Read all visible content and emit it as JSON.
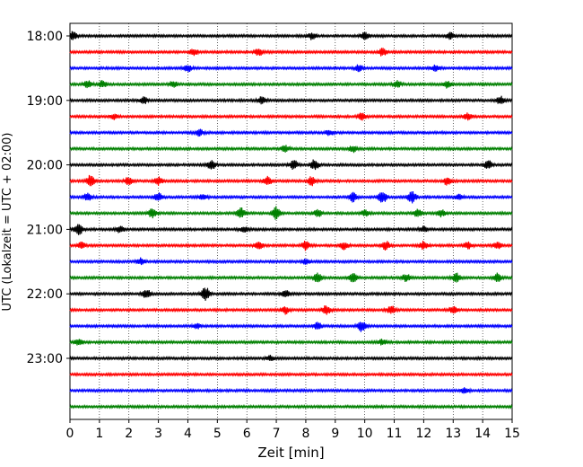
{
  "chart_data": {
    "type": "line",
    "title": "",
    "xlabel": "Zeit  [min]",
    "ylabel": "UTC (Lokalzeit = UTC + 02:00)",
    "xlim": [
      0,
      15
    ],
    "x_ticks": [
      "0",
      "1",
      "2",
      "3",
      "4",
      "5",
      "6",
      "7",
      "8",
      "9",
      "10",
      "11",
      "12",
      "13",
      "14",
      "15"
    ],
    "y_ticks": [
      "18:00",
      "19:00",
      "20:00",
      "21:00",
      "22:00",
      "23:00"
    ],
    "grid": "vertical-dotted",
    "series_colors": [
      "#000000",
      "#ff0000",
      "#0000ff",
      "#008000"
    ],
    "traces": [
      {
        "time": "18:00",
        "color": "#000000",
        "bursts": [
          [
            0.1,
            0.6
          ],
          [
            8.2,
            0.5
          ],
          [
            10.0,
            0.6
          ],
          [
            12.9,
            0.5
          ]
        ]
      },
      {
        "time": "18:15",
        "color": "#ff0000",
        "bursts": [
          [
            4.2,
            0.5
          ],
          [
            6.4,
            0.6
          ],
          [
            10.6,
            0.6
          ]
        ]
      },
      {
        "time": "18:30",
        "color": "#0000ff",
        "bursts": [
          [
            4.0,
            0.5
          ],
          [
            9.8,
            0.5
          ],
          [
            12.4,
            0.5
          ]
        ]
      },
      {
        "time": "18:45",
        "color": "#008000",
        "bursts": [
          [
            0.6,
            0.6
          ],
          [
            1.1,
            0.5
          ],
          [
            3.5,
            0.5
          ],
          [
            11.1,
            0.5
          ],
          [
            12.8,
            0.5
          ]
        ]
      },
      {
        "time": "19:00",
        "color": "#000000",
        "bursts": [
          [
            2.5,
            0.5
          ],
          [
            6.5,
            0.5
          ],
          [
            14.6,
            0.6
          ]
        ]
      },
      {
        "time": "19:15",
        "color": "#ff0000",
        "bursts": [
          [
            1.5,
            0.4
          ],
          [
            9.9,
            0.5
          ],
          [
            13.5,
            0.5
          ]
        ]
      },
      {
        "time": "19:30",
        "color": "#0000ff",
        "bursts": [
          [
            4.4,
            0.5
          ],
          [
            8.8,
            0.4
          ]
        ]
      },
      {
        "time": "19:45",
        "color": "#008000",
        "bursts": [
          [
            7.3,
            0.5
          ],
          [
            9.6,
            0.5
          ]
        ]
      },
      {
        "time": "20:00",
        "color": "#000000",
        "bursts": [
          [
            4.8,
            0.8
          ],
          [
            7.6,
            0.7
          ],
          [
            8.3,
            0.8
          ],
          [
            14.2,
            0.7
          ]
        ]
      },
      {
        "time": "20:15",
        "color": "#ff0000",
        "bursts": [
          [
            0.7,
            0.9
          ],
          [
            2.0,
            0.7
          ],
          [
            3.0,
            0.6
          ],
          [
            6.7,
            0.7
          ],
          [
            8.2,
            0.7
          ],
          [
            12.8,
            0.6
          ]
        ]
      },
      {
        "time": "20:30",
        "color": "#0000ff",
        "bursts": [
          [
            0.6,
            0.6
          ],
          [
            3.0,
            0.6
          ],
          [
            4.5,
            0.4
          ],
          [
            9.6,
            0.7
          ],
          [
            10.6,
            1.0
          ],
          [
            11.6,
            1.0
          ],
          [
            13.2,
            0.5
          ]
        ]
      },
      {
        "time": "20:45",
        "color": "#008000",
        "bursts": [
          [
            2.8,
            0.7
          ],
          [
            5.8,
            0.8
          ],
          [
            7.0,
            1.0
          ],
          [
            8.4,
            0.6
          ],
          [
            10.0,
            0.5
          ],
          [
            11.8,
            0.6
          ],
          [
            12.6,
            0.5
          ]
        ]
      },
      {
        "time": "21:00",
        "color": "#000000",
        "bursts": [
          [
            0.3,
            0.8
          ],
          [
            1.7,
            0.5
          ],
          [
            5.9,
            0.4
          ],
          [
            12.0,
            0.4
          ]
        ]
      },
      {
        "time": "21:15",
        "color": "#ff0000",
        "bursts": [
          [
            0.4,
            0.5
          ],
          [
            6.4,
            0.6
          ],
          [
            8.0,
            0.7
          ],
          [
            9.3,
            0.6
          ],
          [
            10.7,
            0.7
          ],
          [
            12.0,
            0.6
          ],
          [
            13.5,
            0.5
          ],
          [
            14.5,
            0.5
          ]
        ]
      },
      {
        "time": "21:30",
        "color": "#0000ff",
        "bursts": [
          [
            2.4,
            0.5
          ],
          [
            8.0,
            0.4
          ]
        ]
      },
      {
        "time": "21:45",
        "color": "#008000",
        "bursts": [
          [
            8.4,
            0.7
          ],
          [
            9.6,
            0.7
          ],
          [
            11.4,
            0.6
          ],
          [
            13.1,
            0.7
          ],
          [
            14.5,
            0.7
          ]
        ]
      },
      {
        "time": "22:00",
        "color": "#000000",
        "bursts": [
          [
            2.6,
            0.7
          ],
          [
            4.6,
            1.0
          ],
          [
            7.3,
            0.6
          ]
        ]
      },
      {
        "time": "22:15",
        "color": "#ff0000",
        "bursts": [
          [
            7.3,
            0.6
          ],
          [
            8.7,
            0.7
          ],
          [
            10.9,
            0.6
          ],
          [
            13.0,
            0.5
          ]
        ]
      },
      {
        "time": "22:30",
        "color": "#0000ff",
        "bursts": [
          [
            4.3,
            0.4
          ],
          [
            8.4,
            0.6
          ],
          [
            9.9,
            0.8
          ]
        ]
      },
      {
        "time": "22:45",
        "color": "#008000",
        "bursts": [
          [
            0.3,
            0.4
          ],
          [
            10.6,
            0.4
          ]
        ]
      },
      {
        "time": "23:00",
        "color": "#000000",
        "bursts": [
          [
            6.8,
            0.4
          ]
        ]
      },
      {
        "time": "23:15",
        "color": "#ff0000",
        "bursts": []
      },
      {
        "time": "23:30",
        "color": "#0000ff",
        "bursts": [
          [
            13.4,
            0.4
          ]
        ]
      },
      {
        "time": "23:45",
        "color": "#008000",
        "bursts": []
      }
    ]
  }
}
